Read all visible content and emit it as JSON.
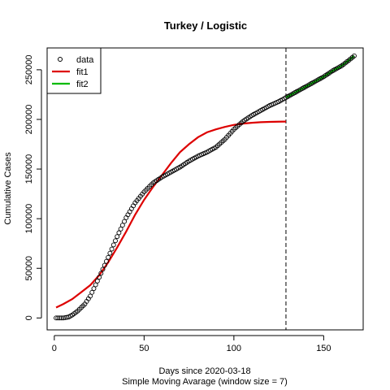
{
  "chart_data": {
    "type": "scatter",
    "title": "Turkey / Logistic",
    "xlabel": "Days since 2020-03-18",
    "xlabel_sub": "Simple Moving Avarage (window size = 7)",
    "ylabel": "Cumulative Cases",
    "xlim": [
      -4,
      172
    ],
    "ylim": [
      -12000,
      272000
    ],
    "x_ticks": [
      0,
      50,
      100,
      150
    ],
    "y_ticks": [
      0,
      50000,
      100000,
      150000,
      200000,
      250000
    ],
    "vline_x": 129,
    "legend": {
      "position": "top-left",
      "entries": [
        "data",
        "fit1",
        "fit2"
      ]
    },
    "colors": {
      "data": "#000000",
      "fit1": "#dd0000",
      "fit2": "#00bb00"
    },
    "series": [
      {
        "name": "data",
        "kind": "points",
        "knots_x": [
          1,
          5,
          8,
          10,
          13,
          17,
          20,
          25,
          30,
          35,
          40,
          45,
          50,
          55,
          60,
          65,
          70,
          75,
          80,
          85,
          90,
          95,
          100,
          105,
          110,
          115,
          120,
          125,
          129,
          135,
          140,
          145,
          150,
          155,
          160,
          165,
          167
        ],
        "knots_y": [
          0,
          0,
          1000,
          3000,
          7000,
          14000,
          22000,
          41000,
          61000,
          82000,
          101000,
          116000,
          127000,
          136000,
          142000,
          147000,
          152000,
          158000,
          163000,
          167000,
          172000,
          180000,
          190000,
          198000,
          204000,
          209000,
          214000,
          218000,
          222000,
          228000,
          233000,
          238000,
          243000,
          249000,
          254000,
          261000,
          264000
        ],
        "x_start": 1,
        "x_end": 167
      },
      {
        "name": "fit1",
        "kind": "line",
        "x": [
          1,
          5,
          10,
          15,
          20,
          25,
          30,
          35,
          40,
          45,
          50,
          55,
          60,
          65,
          70,
          75,
          80,
          85,
          90,
          95,
          100,
          105,
          110,
          115,
          120,
          125,
          129
        ],
        "y": [
          10500,
          14000,
          19000,
          26000,
          33000,
          43000,
          56000,
          71000,
          87000,
          104000,
          119000,
          132000,
          144000,
          156000,
          167000,
          175000,
          182000,
          187000,
          190000,
          192500,
          194500,
          195800,
          196600,
          197200,
          197500,
          197700,
          197800
        ]
      },
      {
        "name": "fit2",
        "kind": "line",
        "x": [
          129,
          135,
          140,
          145,
          150,
          155,
          160,
          165,
          167
        ],
        "y": [
          222000,
          228000,
          233000,
          238000,
          243000,
          249000,
          254000,
          261000,
          264000
        ]
      }
    ]
  }
}
